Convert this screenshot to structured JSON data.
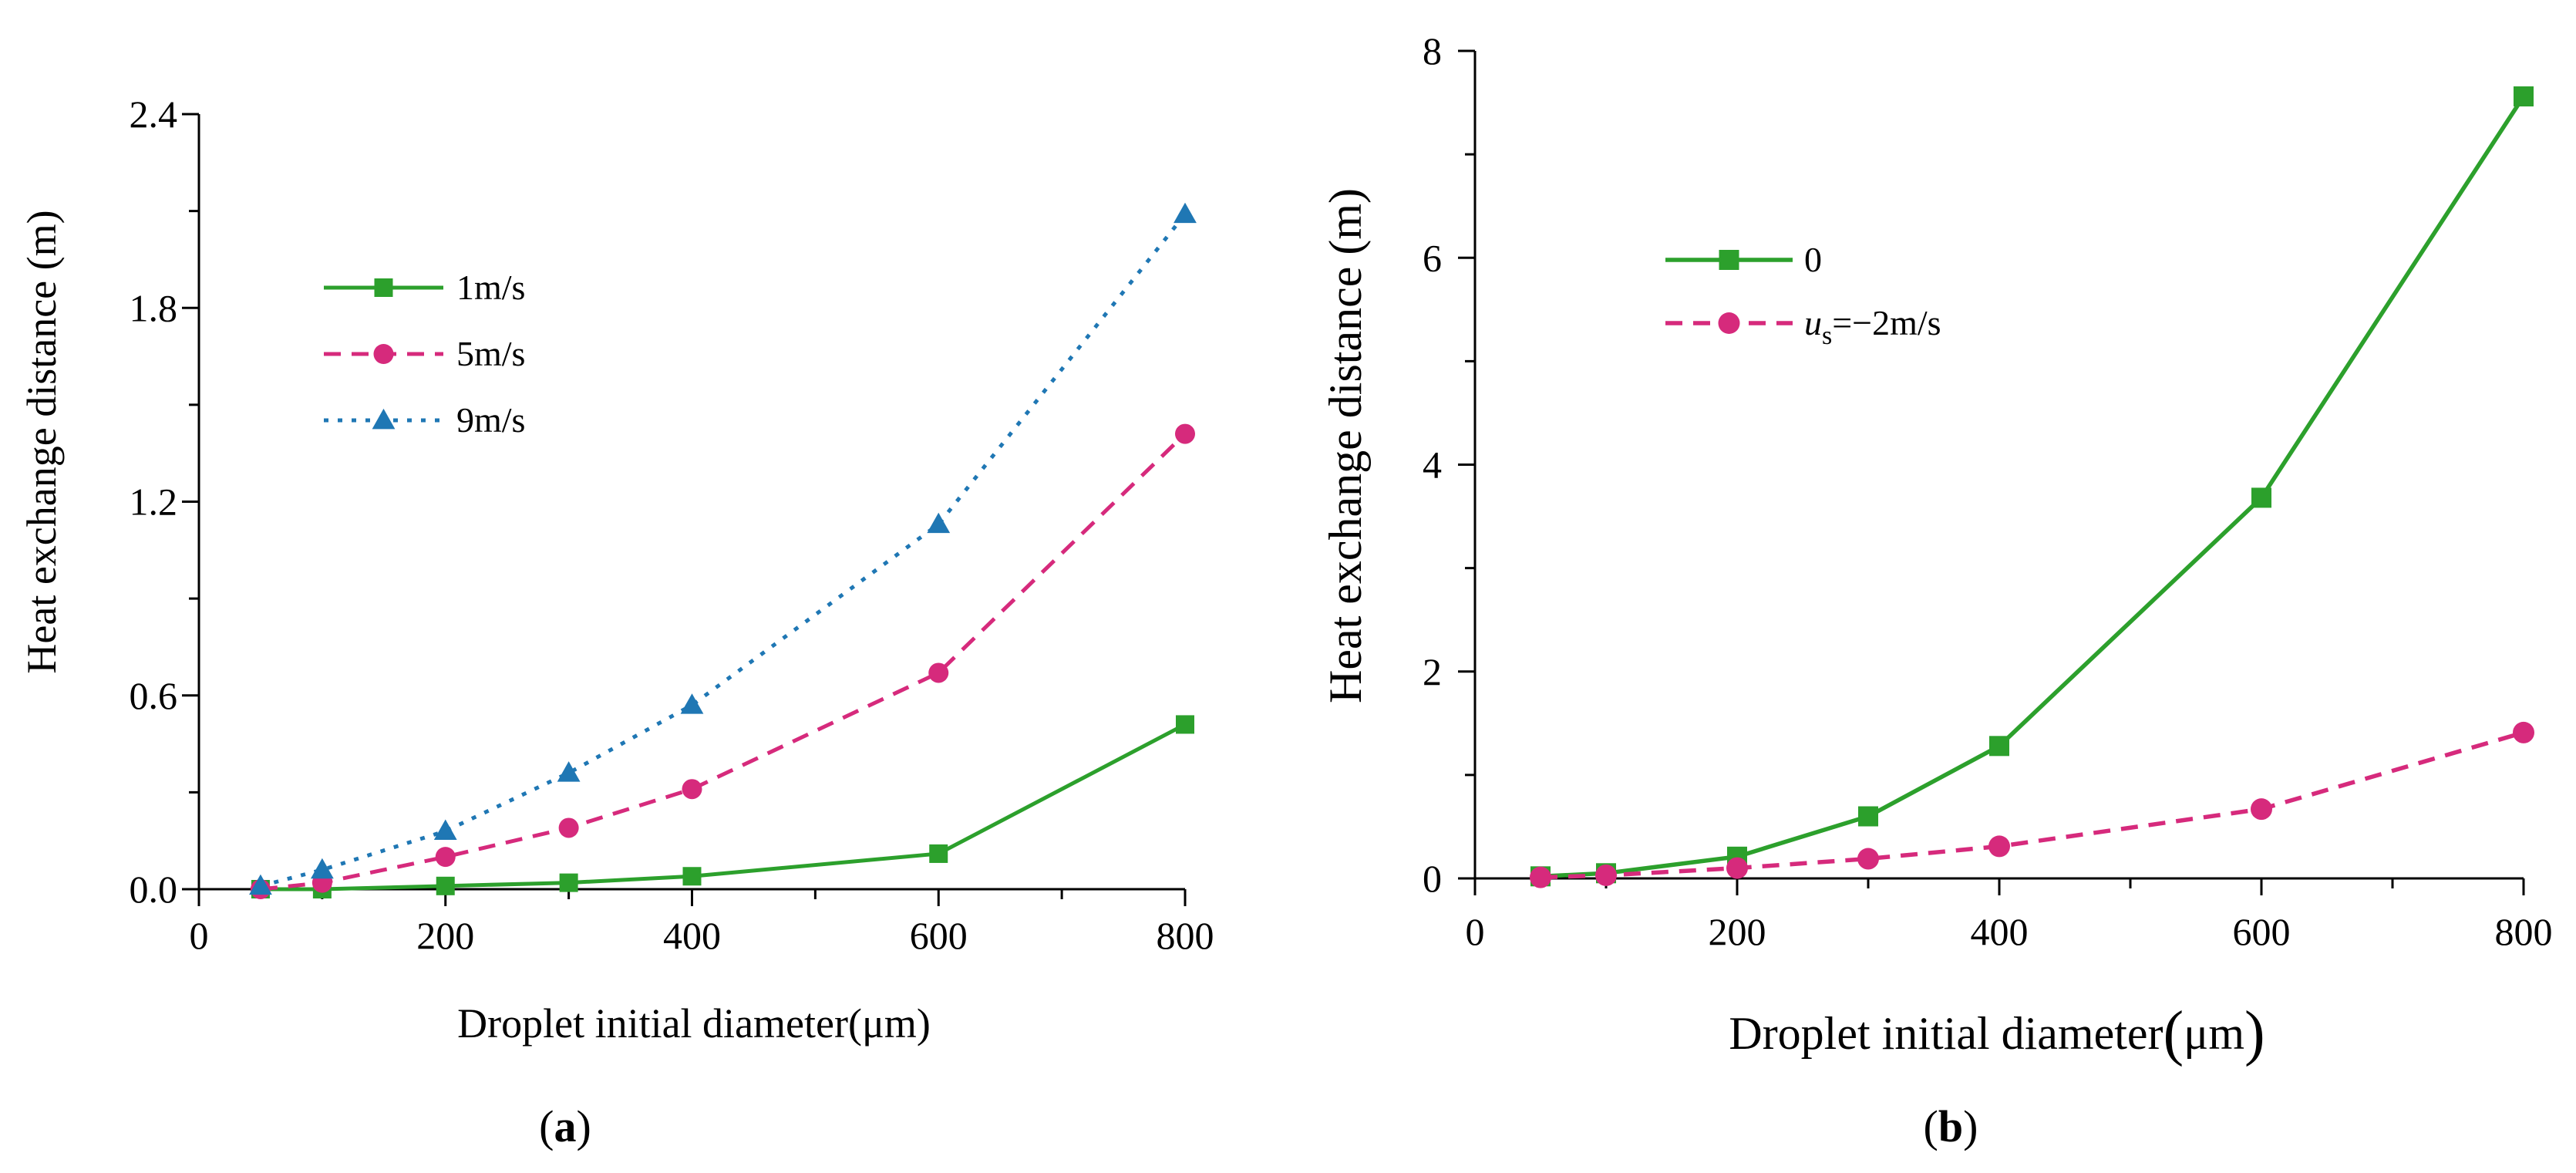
{
  "chart_data": [
    {
      "type": "line",
      "caption_letter": "a",
      "xlabel": "Droplet initial diameter(μm)",
      "ylabel": "Heat exchange distance (m)",
      "xlim": [
        0,
        800
      ],
      "ylim": [
        0,
        2.4
      ],
      "xticks": [
        "0",
        "200",
        "400",
        "600",
        "800"
      ],
      "yticks": [
        "0.0",
        "0.6",
        "1.2",
        "1.8",
        "2.4"
      ],
      "legend_position": "upper-left",
      "x": [
        50,
        100,
        200,
        300,
        400,
        600,
        800
      ],
      "series": [
        {
          "name": "1m/s",
          "color": "#2ca02c",
          "style": "solid",
          "marker": "square",
          "values": [
            0.0,
            0.0,
            0.01,
            0.02,
            0.04,
            0.11,
            0.51
          ]
        },
        {
          "name": "5m/s",
          "color": "#d62a7c",
          "style": "dashed",
          "marker": "circle",
          "values": [
            0.0,
            0.02,
            0.1,
            0.19,
            0.31,
            0.67,
            1.41
          ]
        },
        {
          "name": "9m/s",
          "color": "#1f77b4",
          "style": "dotted",
          "marker": "triangle",
          "values": [
            0.01,
            0.06,
            0.18,
            0.36,
            0.57,
            1.13,
            2.09
          ]
        }
      ]
    },
    {
      "type": "line",
      "caption_letter": "b",
      "xlabel": "Droplet initial diameter",
      "xlabel_unit": "μm",
      "ylabel": "Heat exchange distance (m)",
      "xlim": [
        0,
        800
      ],
      "ylim": [
        0,
        8
      ],
      "xticks": [
        "0",
        "200",
        "400",
        "600",
        "800"
      ],
      "yticks": [
        "0",
        "2",
        "4",
        "6",
        "8"
      ],
      "legend_position": "upper-left",
      "x": [
        50,
        100,
        200,
        300,
        400,
        600,
        800
      ],
      "series": [
        {
          "name": "0",
          "color": "#2ca02c",
          "style": "solid",
          "marker": "square",
          "values": [
            0.02,
            0.05,
            0.21,
            0.6,
            1.28,
            3.68,
            7.56
          ]
        },
        {
          "name": "u",
          "name_subscript": "s",
          "name_suffix": "=−2m/s",
          "color": "#d62a7c",
          "style": "dashed",
          "marker": "circle",
          "values": [
            0.01,
            0.03,
            0.1,
            0.19,
            0.31,
            0.67,
            1.41
          ]
        }
      ]
    }
  ]
}
